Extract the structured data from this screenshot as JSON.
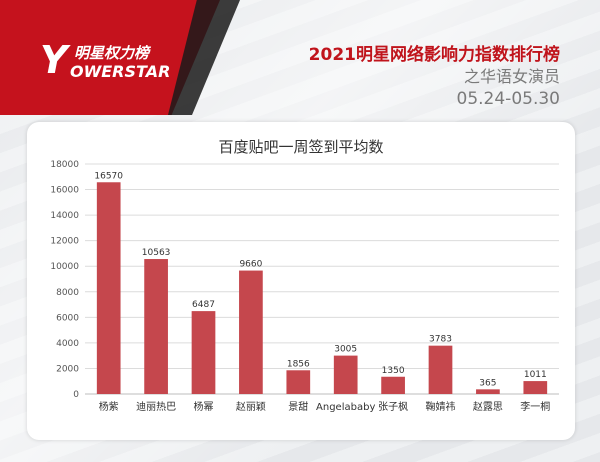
{
  "header": {
    "logo_y": "Y",
    "logo_cn": "明星权力榜",
    "logo_en": "OWERSTAR",
    "main_title": "2021明星网络影响力指数排行榜",
    "sub_title": "之华语女演员",
    "date_range": "05.24-05.30"
  },
  "colors": {
    "bar": "#c5474d",
    "brand_red": "#c0141c",
    "grid": "#dcdcdc"
  },
  "chart_data": {
    "type": "bar",
    "title": "百度贴吧一周签到平均数",
    "categories": [
      "杨紫",
      "迪丽热巴",
      "杨幂",
      "赵丽颖",
      "景甜",
      "Angelababy",
      "张子枫",
      "鞠婧祎",
      "赵露思",
      "李一桐"
    ],
    "values": [
      16570,
      10563,
      6487,
      9660,
      1856,
      3005,
      1350,
      3783,
      365,
      1011
    ],
    "ylim": [
      0,
      18000
    ],
    "yticks": [
      0,
      2000,
      4000,
      6000,
      8000,
      10000,
      12000,
      14000,
      16000,
      18000
    ],
    "grid": true,
    "legend": "none"
  }
}
